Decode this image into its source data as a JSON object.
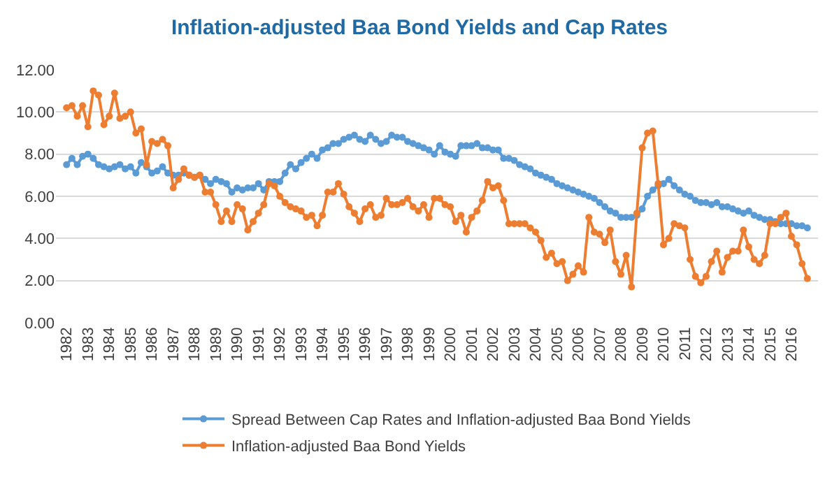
{
  "chart_data": {
    "type": "line",
    "title": "Inflation-adjusted Baa Bond Yields and Cap Rates",
    "categories": [
      "1982",
      null,
      null,
      null,
      "1983",
      null,
      null,
      null,
      "1984",
      null,
      null,
      null,
      "1985",
      null,
      null,
      null,
      "1986",
      null,
      null,
      null,
      "1987",
      null,
      null,
      null,
      "1988",
      null,
      null,
      null,
      "1989",
      null,
      null,
      null,
      "1990",
      null,
      null,
      null,
      "1991",
      null,
      null,
      null,
      "1992",
      null,
      null,
      null,
      "1993",
      null,
      null,
      null,
      "1994",
      null,
      null,
      null,
      "1995",
      null,
      null,
      null,
      "1996",
      null,
      null,
      null,
      "1997",
      null,
      null,
      null,
      "1998",
      null,
      null,
      null,
      "1999",
      null,
      null,
      null,
      "2000",
      null,
      null,
      null,
      "2001",
      null,
      null,
      null,
      "2002",
      null,
      null,
      null,
      "2003",
      null,
      null,
      null,
      "2004",
      null,
      null,
      null,
      "2005",
      null,
      null,
      null,
      "2006",
      null,
      null,
      null,
      "2007",
      null,
      null,
      null,
      "2008",
      null,
      null,
      null,
      "2009",
      null,
      null,
      null,
      "2010",
      null,
      null,
      null,
      "2011",
      null,
      null,
      null,
      "2012",
      null,
      null,
      null,
      "2013",
      null,
      null,
      null,
      "2014",
      null,
      null,
      null,
      "2015",
      null,
      null,
      null,
      "2016",
      null,
      null,
      null
    ],
    "series": [
      {
        "name": "Spread Between Cap Rates and Inflation-adjusted Baa Bond Yields",
        "color": "#5b9bd5",
        "values": [
          7.5,
          7.8,
          7.5,
          7.9,
          8.0,
          7.8,
          7.5,
          7.4,
          7.3,
          7.4,
          7.5,
          7.3,
          7.4,
          7.1,
          7.6,
          7.4,
          7.1,
          7.2,
          7.4,
          7.1,
          7.0,
          7.0,
          7.1,
          7.0,
          6.9,
          7.0,
          6.8,
          6.6,
          6.8,
          6.7,
          6.6,
          6.2,
          6.4,
          6.3,
          6.4,
          6.4,
          6.6,
          6.3,
          6.7,
          6.7,
          6.7,
          7.1,
          7.5,
          7.3,
          7.6,
          7.8,
          8.0,
          7.8,
          8.2,
          8.3,
          8.5,
          8.5,
          8.7,
          8.8,
          8.9,
          8.7,
          8.6,
          8.9,
          8.7,
          8.5,
          8.6,
          8.9,
          8.8,
          8.8,
          8.6,
          8.5,
          8.4,
          8.3,
          8.2,
          8.0,
          8.4,
          8.1,
          8.0,
          7.9,
          8.4,
          8.4,
          8.4,
          8.5,
          8.3,
          8.3,
          8.2,
          8.2,
          7.8,
          7.8,
          7.7,
          7.5,
          7.4,
          7.3,
          7.1,
          7.0,
          6.9,
          6.8,
          6.6,
          6.5,
          6.4,
          6.3,
          6.2,
          6.1,
          6.0,
          5.9,
          5.7,
          5.5,
          5.3,
          5.2,
          5.0,
          5.0,
          5.0,
          5.1,
          5.4,
          6.0,
          6.3,
          6.5,
          6.6,
          6.8,
          6.5,
          6.3,
          6.1,
          6.0,
          5.8,
          5.7,
          5.7,
          5.6,
          5.7,
          5.5,
          5.5,
          5.4,
          5.3,
          5.2,
          5.3,
          5.1,
          5.0,
          4.9,
          4.9,
          4.8,
          4.7,
          4.7,
          4.7,
          4.6,
          4.6,
          4.5
        ]
      },
      {
        "name": "Inflation-adjusted Baa Bond Yields",
        "color": "#ed7d31",
        "values": [
          10.2,
          10.3,
          9.8,
          10.3,
          9.3,
          11.0,
          10.8,
          9.4,
          9.8,
          10.9,
          9.7,
          9.8,
          10.0,
          9.0,
          9.2,
          7.5,
          8.6,
          8.5,
          8.7,
          8.4,
          6.4,
          6.8,
          7.3,
          7.0,
          6.9,
          7.0,
          6.2,
          6.2,
          5.6,
          4.8,
          5.3,
          4.8,
          5.6,
          5.4,
          4.4,
          4.8,
          5.2,
          5.6,
          6.6,
          6.5,
          6.0,
          5.7,
          5.5,
          5.4,
          5.3,
          5.0,
          5.1,
          4.6,
          5.1,
          6.2,
          6.2,
          6.6,
          6.1,
          5.5,
          5.2,
          4.8,
          5.4,
          5.6,
          5.0,
          5.1,
          5.9,
          5.6,
          5.6,
          5.7,
          5.9,
          5.5,
          5.3,
          5.6,
          5.0,
          5.9,
          5.9,
          5.6,
          5.5,
          4.8,
          5.1,
          4.3,
          5.0,
          5.3,
          5.8,
          6.7,
          6.4,
          6.5,
          5.8,
          4.7,
          4.7,
          4.7,
          4.7,
          4.5,
          4.3,
          3.9,
          3.1,
          3.3,
          2.8,
          2.9,
          2.0,
          2.3,
          2.7,
          2.4,
          5.0,
          4.3,
          4.2,
          3.8,
          4.4,
          2.9,
          2.3,
          3.2,
          1.7,
          5.2,
          8.3,
          9.0,
          9.1,
          6.6,
          3.7,
          4.0,
          4.7,
          4.6,
          4.5,
          3.0,
          2.2,
          1.9,
          2.2,
          2.9,
          3.4,
          2.4,
          3.1,
          3.4,
          3.4,
          4.4,
          3.6,
          3.0,
          2.8,
          3.2,
          4.7,
          4.7,
          5.0,
          5.2,
          4.1,
          3.7,
          2.8,
          2.1
        ]
      }
    ],
    "ylim": [
      0,
      12
    ],
    "yticks": [
      {
        "value": 0,
        "label": "0.00"
      },
      {
        "value": 2,
        "label": "2.00"
      },
      {
        "value": 4,
        "label": "4.00"
      },
      {
        "value": 6,
        "label": "6.00"
      },
      {
        "value": 8,
        "label": "8.00"
      },
      {
        "value": 10,
        "label": "10.00"
      },
      {
        "value": 12,
        "label": "12.00"
      }
    ],
    "grid": "y",
    "legend": "bottom",
    "marker": "circle",
    "line_style": "solid"
  }
}
